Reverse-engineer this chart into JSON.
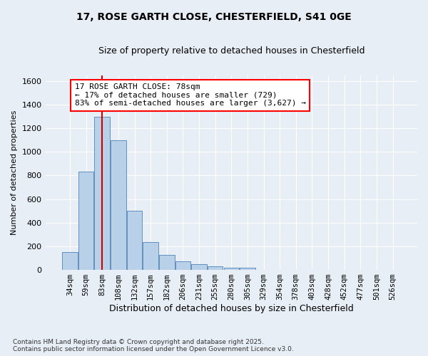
{
  "title_line1": "17, ROSE GARTH CLOSE, CHESTERFIELD, S41 0GE",
  "title_line2": "Size of property relative to detached houses in Chesterfield",
  "xlabel": "Distribution of detached houses by size in Chesterfield",
  "ylabel": "Number of detached properties",
  "footnote": "Contains HM Land Registry data © Crown copyright and database right 2025.\nContains public sector information licensed under the Open Government Licence v3.0.",
  "bins": [
    "34sqm",
    "59sqm",
    "83sqm",
    "108sqm",
    "132sqm",
    "157sqm",
    "182sqm",
    "206sqm",
    "231sqm",
    "255sqm",
    "280sqm",
    "305sqm",
    "329sqm",
    "354sqm",
    "378sqm",
    "403sqm",
    "428sqm",
    "452sqm",
    "477sqm",
    "501sqm",
    "526sqm"
  ],
  "values": [
    150,
    830,
    1300,
    1100,
    500,
    235,
    130,
    75,
    50,
    30,
    20,
    20,
    0,
    0,
    0,
    0,
    0,
    0,
    0,
    0,
    0
  ],
  "bar_color": "#b8d0e8",
  "bar_edge_color": "#6090c0",
  "bg_color": "#e8eef5",
  "grid_color": "#c8d8e8",
  "annotation_box_text": "17 ROSE GARTH CLOSE: 78sqm\n← 17% of detached houses are smaller (729)\n83% of semi-detached houses are larger (3,627) →",
  "vline_color": "#cc0000",
  "ylim": [
    0,
    1650
  ],
  "yticks": [
    0,
    200,
    400,
    600,
    800,
    1000,
    1200,
    1400,
    1600
  ]
}
